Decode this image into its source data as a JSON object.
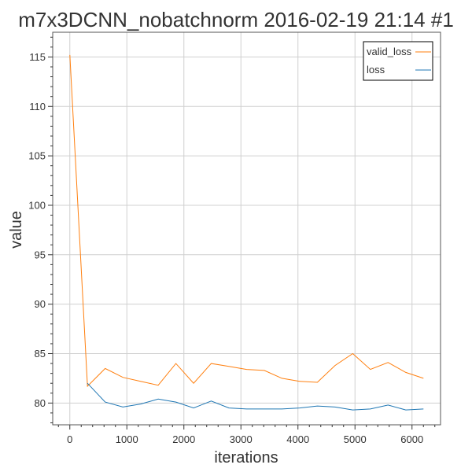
{
  "chart_data": {
    "type": "line",
    "title": "m7x3DCNN_nobatchnorm 2016-02-19 21:14 #1",
    "xlabel": "iterations",
    "ylabel": "value",
    "xlim": [
      -300,
      6500
    ],
    "ylim": [
      77.8,
      117.5
    ],
    "xticks": [
      0,
      1000,
      2000,
      3000,
      4000,
      5000,
      6000
    ],
    "yticks": [
      80,
      85,
      90,
      95,
      100,
      105,
      110,
      115
    ],
    "grid": true,
    "legend_position": "top-right",
    "series": [
      {
        "name": "valid_loss",
        "color": "#ff7f0e",
        "x": [
          0,
          310,
          620,
          930,
          1240,
          1550,
          1860,
          2170,
          2480,
          2790,
          3100,
          3410,
          3720,
          4030,
          4340,
          4650,
          4960,
          5270,
          5580,
          5890,
          6200
        ],
        "y": [
          115.2,
          81.7,
          83.5,
          82.6,
          82.2,
          81.8,
          84.0,
          82.0,
          84.0,
          83.7,
          83.4,
          83.3,
          82.5,
          82.2,
          82.1,
          83.8,
          85.0,
          83.4,
          84.1,
          83.1,
          82.5
        ]
      },
      {
        "name": "loss",
        "color": "#1f77b4",
        "x": [
          310,
          620,
          930,
          1240,
          1550,
          1860,
          2170,
          2480,
          2790,
          3100,
          3410,
          3720,
          4030,
          4340,
          4650,
          4960,
          5270,
          5580,
          5890,
          6200
        ],
        "y": [
          82.0,
          80.1,
          79.6,
          79.9,
          80.4,
          80.1,
          79.5,
          80.2,
          79.5,
          79.4,
          79.4,
          79.4,
          79.5,
          79.7,
          79.6,
          79.3,
          79.4,
          79.8,
          79.3,
          79.4
        ]
      }
    ]
  },
  "legend": {
    "entries": [
      "valid_loss",
      "loss"
    ]
  }
}
